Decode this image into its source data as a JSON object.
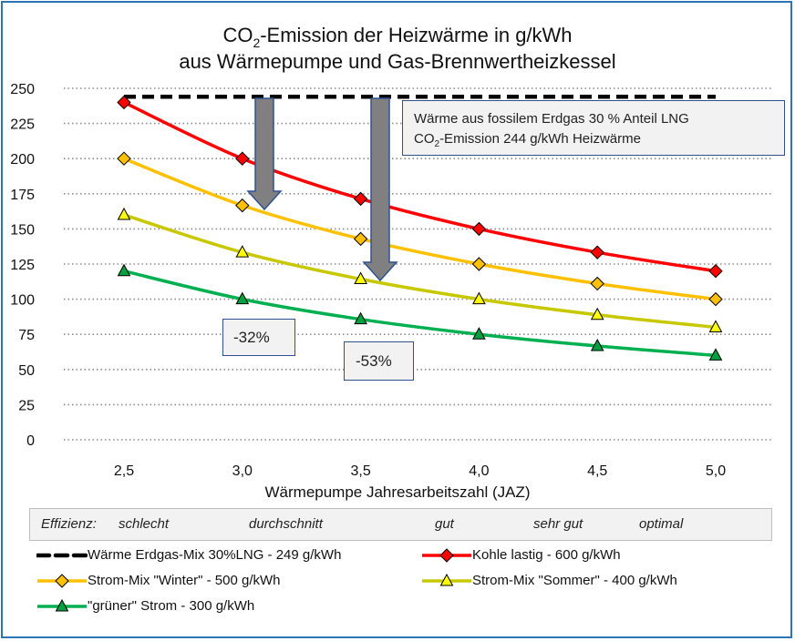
{
  "chart_data": {
    "type": "line",
    "title_line1": {
      "pre": "CO",
      "sub": "2",
      "post": "-Emission der Heizwärme in g/kWh"
    },
    "title_line2": "aus Wärmepumpe und Gas-Brennwertheizkessel",
    "xlabel": "Wärmepumpe Jahresarbeitszahl (JAZ)",
    "ylabel": "",
    "x": [
      2.5,
      3.0,
      3.5,
      4.0,
      4.5,
      5.0
    ],
    "x_tick_labels": [
      "2,5",
      "3,0",
      "3,5",
      "4,0",
      "4,5",
      "5,0"
    ],
    "y_ticks": [
      0,
      25,
      50,
      75,
      100,
      125,
      150,
      175,
      200,
      225,
      250
    ],
    "ylim": [
      0,
      250
    ],
    "grid": "horizontal dotted",
    "legend_placement": "bottom",
    "series": [
      {
        "name": "Wärme Erdgas-Mix 30%LNG  - 249 g/kWh",
        "color": "#000000",
        "style": "dashed",
        "marker": "none",
        "values": [
          244,
          244,
          244,
          244,
          244,
          244
        ]
      },
      {
        "name": "Kohle lastig  - 600 g/kWh",
        "color": "#ff0000",
        "style": "solid",
        "marker": "diamond",
        "marker_fill": "#ff0000",
        "values": [
          240,
          200,
          171.4,
          150,
          133.3,
          120
        ]
      },
      {
        "name": "Strom-Mix \"Winter\"  - 500 g/kWh",
        "color": "#ffc000",
        "style": "solid",
        "marker": "diamond",
        "marker_fill": "#ffc000",
        "values": [
          200,
          166.7,
          142.9,
          125,
          111.1,
          100
        ]
      },
      {
        "name": "Strom-Mix \"Sommer\"  - 400 g/kWh",
        "color": "#c8c800",
        "style": "solid",
        "marker": "triangle",
        "marker_fill": "#ffff00",
        "values": [
          160,
          133.3,
          114.3,
          100,
          88.9,
          80
        ]
      },
      {
        "name": "\"grüner\" Strom  - 300 g/kWh",
        "color": "#00b050",
        "style": "solid",
        "marker": "triangle",
        "marker_fill": "#00a040",
        "values": [
          120,
          100,
          85.7,
          75,
          66.7,
          60
        ]
      }
    ],
    "annotations": {
      "info_line1": "Wärme aus fossilem Erdgas 30 % Anteil LNG",
      "info_line2": {
        "pre": "CO",
        "sub": "2",
        "post": "-Emission 244 g/kWh Heizwärme"
      },
      "reduction1": "-32%",
      "reduction2": "-53%",
      "arrow_color": "#808080"
    },
    "efficiency": {
      "label": "Effizienz:",
      "levels": [
        "schlecht",
        "durchschnitt",
        "gut",
        "sehr gut",
        "optimal"
      ]
    }
  }
}
